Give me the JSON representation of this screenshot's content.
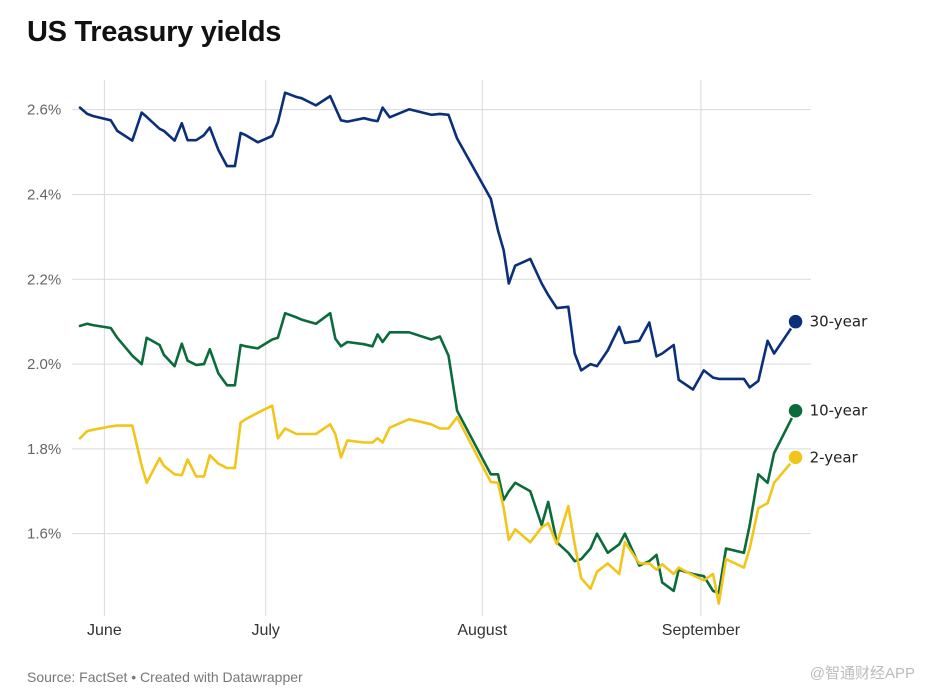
{
  "chart_data": {
    "type": "line",
    "title": "US Treasury yields",
    "source": "Source: FactSet • Created with Datawrapper",
    "watermark": "@智通财经APP",
    "ylim": [
      1.42,
      2.67
    ],
    "xlim": [
      0,
      100
    ],
    "yticks": [
      {
        "value": 2.6,
        "label": "2.6%"
      },
      {
        "value": 2.4,
        "label": "2.4%"
      },
      {
        "value": 2.2,
        "label": "2.2%"
      },
      {
        "value": 2.0,
        "label": "2.0%"
      },
      {
        "value": 1.8,
        "label": "1.8%"
      },
      {
        "value": 1.6,
        "label": "1.6%"
      }
    ],
    "xticks": [
      {
        "value": 3.4,
        "label": "June"
      },
      {
        "value": 25.9,
        "label": "July"
      },
      {
        "value": 56.1,
        "label": "August"
      },
      {
        "value": 86.6,
        "label": "September"
      }
    ],
    "series": [
      {
        "name": "30-year",
        "label": "30-year",
        "color": "#0b2f7a",
        "x": [
          0.0,
          1.0,
          1.8,
          4.3,
          5.2,
          7.3,
          8.6,
          9.3,
          11.1,
          11.7,
          13.2,
          14.2,
          15.0,
          16.2,
          17.3,
          18.1,
          19.3,
          20.5,
          21.6,
          22.4,
          23.1,
          24.8,
          26.8,
          27.6,
          28.6,
          30.2,
          30.9,
          32.9,
          34.9,
          35.6,
          36.4,
          37.3,
          39.6,
          40.8,
          41.5,
          42.2,
          43.2,
          45.9,
          49.0,
          50.2,
          51.4,
          52.6,
          57.3,
          58.3,
          59.1,
          59.8,
          60.7,
          62.8,
          64.4,
          65.3,
          66.5,
          68.1,
          69.0,
          69.9,
          71.2,
          72.1,
          73.6,
          75.2,
          76.0,
          78.0,
          79.4,
          80.4,
          81.2,
          82.8,
          83.5,
          85.5,
          87.0,
          88.3,
          89.1,
          90.1,
          92.6,
          93.4,
          94.6,
          95.9,
          96.8,
          99.8
        ],
        "values": [
          2.605,
          2.59,
          2.585,
          2.575,
          2.55,
          2.527,
          2.593,
          2.583,
          2.555,
          2.55,
          2.527,
          2.568,
          2.528,
          2.528,
          2.54,
          2.558,
          2.505,
          2.467,
          2.467,
          2.545,
          2.54,
          2.523,
          2.538,
          2.57,
          2.64,
          2.63,
          2.627,
          2.61,
          2.632,
          2.605,
          2.575,
          2.572,
          2.58,
          2.575,
          2.573,
          2.605,
          2.582,
          2.601,
          2.588,
          2.59,
          2.588,
          2.532,
          2.39,
          2.315,
          2.268,
          2.19,
          2.232,
          2.248,
          2.19,
          2.163,
          2.132,
          2.135,
          2.025,
          1.985,
          2.0,
          1.995,
          2.032,
          2.088,
          2.05,
          2.055,
          2.098,
          2.018,
          2.025,
          2.045,
          1.963,
          1.94,
          1.985,
          1.968,
          1.965,
          1.965,
          1.965,
          1.945,
          1.96,
          2.055,
          2.025,
          2.1
        ]
      },
      {
        "name": "10-year",
        "label": "10-year",
        "color": "#0b6b3a",
        "x": [
          0.0,
          1.0,
          1.8,
          4.3,
          5.2,
          7.3,
          8.6,
          9.3,
          11.1,
          11.7,
          13.2,
          14.2,
          15.0,
          16.2,
          17.3,
          18.1,
          19.3,
          20.5,
          21.6,
          22.4,
          23.1,
          24.8,
          26.8,
          27.6,
          28.6,
          30.2,
          30.9,
          32.9,
          34.9,
          35.6,
          36.4,
          37.3,
          39.6,
          40.8,
          41.5,
          42.2,
          43.2,
          45.9,
          49.0,
          50.2,
          51.4,
          52.6,
          57.3,
          58.3,
          59.1,
          59.8,
          60.7,
          62.8,
          64.4,
          65.3,
          66.5,
          68.1,
          69.0,
          69.9,
          71.2,
          72.1,
          73.6,
          75.2,
          76.0,
          78.0,
          79.4,
          80.4,
          81.2,
          82.8,
          83.5,
          85.5,
          87.0,
          88.3,
          89.1,
          90.1,
          92.6,
          93.4,
          94.6,
          95.9,
          96.8,
          99.8
        ],
        "values": [
          2.09,
          2.095,
          2.092,
          2.085,
          2.062,
          2.02,
          2.0,
          2.062,
          2.045,
          2.022,
          1.995,
          2.048,
          2.008,
          1.998,
          2.0,
          2.035,
          1.978,
          1.95,
          1.95,
          2.045,
          2.042,
          2.037,
          2.058,
          2.062,
          2.12,
          2.11,
          2.105,
          2.095,
          2.12,
          2.06,
          2.042,
          2.052,
          2.047,
          2.042,
          2.07,
          2.052,
          2.075,
          2.075,
          2.058,
          2.065,
          2.02,
          1.89,
          1.74,
          1.74,
          1.68,
          1.7,
          1.72,
          1.7,
          1.62,
          1.675,
          1.58,
          1.555,
          1.535,
          1.54,
          1.565,
          1.6,
          1.555,
          1.575,
          1.6,
          1.525,
          1.535,
          1.55,
          1.485,
          1.465,
          1.515,
          1.505,
          1.5,
          1.465,
          1.46,
          1.565,
          1.555,
          1.62,
          1.74,
          1.72,
          1.79,
          1.89
        ]
      },
      {
        "name": "2-year",
        "label": "2-year",
        "color": "#f2c51a",
        "x": [
          0.0,
          1.0,
          1.8,
          4.3,
          5.2,
          7.3,
          8.6,
          9.3,
          11.1,
          11.7,
          13.2,
          14.2,
          15.0,
          16.2,
          17.3,
          18.1,
          19.3,
          20.5,
          21.6,
          22.4,
          23.1,
          24.8,
          26.8,
          27.6,
          28.6,
          30.2,
          30.9,
          32.9,
          34.9,
          35.6,
          36.4,
          37.3,
          39.6,
          40.8,
          41.5,
          42.2,
          43.2,
          45.9,
          49.0,
          50.2,
          51.4,
          52.6,
          57.3,
          58.3,
          59.1,
          59.8,
          60.7,
          62.8,
          64.4,
          65.3,
          66.5,
          68.1,
          69.0,
          69.9,
          71.2,
          72.1,
          73.6,
          75.2,
          76.0,
          78.0,
          79.4,
          80.4,
          81.2,
          82.8,
          83.5,
          85.5,
          87.0,
          88.3,
          89.1,
          90.1,
          92.6,
          93.4,
          94.6,
          95.9,
          96.8,
          99.8
        ],
        "values": [
          1.825,
          1.842,
          1.845,
          1.853,
          1.855,
          1.855,
          1.76,
          1.72,
          1.778,
          1.76,
          1.74,
          1.738,
          1.775,
          1.735,
          1.735,
          1.785,
          1.765,
          1.755,
          1.755,
          1.862,
          1.87,
          1.885,
          1.902,
          1.825,
          1.848,
          1.835,
          1.835,
          1.835,
          1.858,
          1.835,
          1.78,
          1.82,
          1.815,
          1.815,
          1.825,
          1.815,
          1.85,
          1.87,
          1.858,
          1.848,
          1.848,
          1.875,
          1.722,
          1.72,
          1.66,
          1.585,
          1.61,
          1.58,
          1.615,
          1.625,
          1.575,
          1.665,
          1.575,
          1.495,
          1.47,
          1.51,
          1.53,
          1.505,
          1.58,
          1.53,
          1.53,
          1.515,
          1.528,
          1.505,
          1.52,
          1.502,
          1.49,
          1.505,
          1.435,
          1.54,
          1.52,
          1.565,
          1.66,
          1.672,
          1.72,
          1.78
        ]
      }
    ]
  }
}
